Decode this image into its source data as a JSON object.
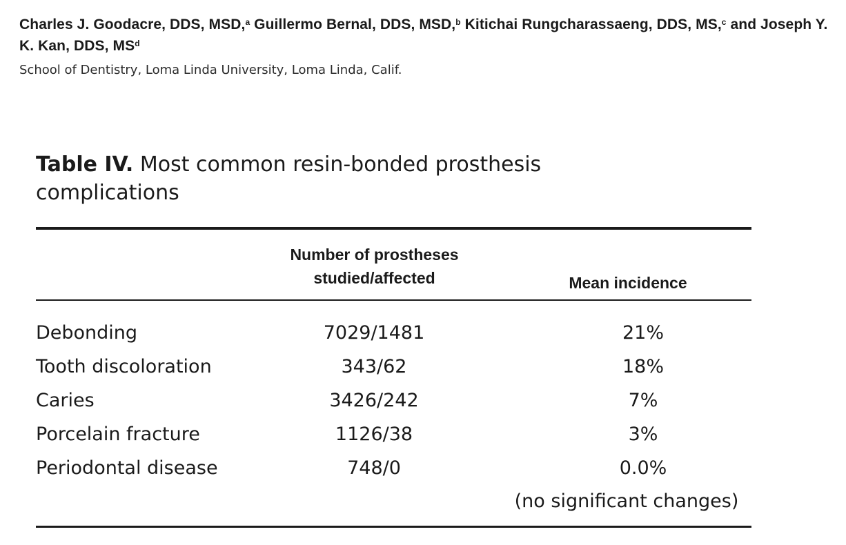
{
  "authors": {
    "a1_name": "Charles J. Goodacre, DDS, MSD,",
    "a1_mark": "a",
    "a2_name": " Guillermo Bernal, DDS, MSD,",
    "a2_mark": "b",
    "a3_name": " Kitichai Rungcharassaeng, DDS, MS,",
    "a3_mark": "c",
    "a4_name": " and Joseph Y. K. Kan, DDS, MS",
    "a4_mark": "d"
  },
  "affiliation": "School of Dentistry, Loma Linda University, Loma Linda, Calif.",
  "table": {
    "label": "Table IV.",
    "title": " Most common resin-bonded prosthesis complications",
    "col1_header_line1": "Number of prostheses",
    "col1_header_line2": "studied/affected",
    "col2_header": "Mean incidence",
    "rows": [
      {
        "name": "Debonding",
        "studied_affected": "7029/1481",
        "mean": "21%"
      },
      {
        "name": "Tooth discoloration",
        "studied_affected": "343/62",
        "mean": "18%"
      },
      {
        "name": "Caries",
        "studied_affected": "3426/242",
        "mean": "7%"
      },
      {
        "name": "Porcelain fracture",
        "studied_affected": "1126/38",
        "mean": "3%"
      },
      {
        "name": "Periodontal disease",
        "studied_affected": "748/0",
        "mean": "0.0%"
      }
    ],
    "note": "(no significant changes)"
  }
}
